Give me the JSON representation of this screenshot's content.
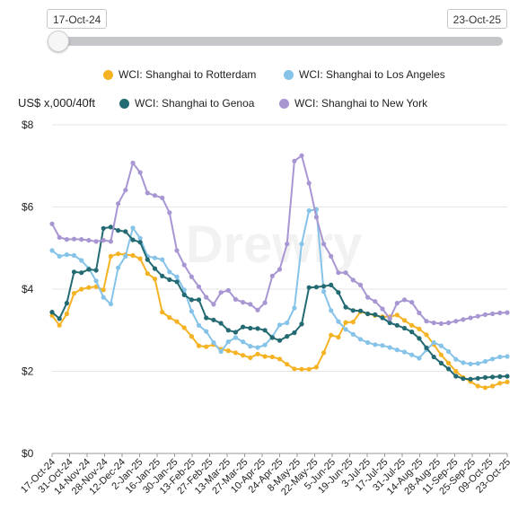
{
  "range": {
    "start_label": "17-Oct-24",
    "end_label": "23-Oct-25",
    "slider_position": 0
  },
  "unit_label": "US$ x,000/40ft",
  "watermark": "Drewry",
  "colors": {
    "rotterdam": "#f5b324",
    "los_angeles": "#86c3e8",
    "genoa": "#236a72",
    "new_york": "#a896d3",
    "grid": "#e6e6e6",
    "axis": "#9a9a9a"
  },
  "legend": [
    {
      "label": "WCI: Shanghai to Rotterdam",
      "color": "#f5b324"
    },
    {
      "label": "WCI: Shanghai to Los Angeles",
      "color": "#86c3e8"
    },
    {
      "label": "WCI: Shanghai to Genoa",
      "color": "#236a72"
    },
    {
      "label": "WCI: Shanghai to New York",
      "color": "#a896d3"
    }
  ],
  "chart_data": {
    "type": "line",
    "ylabel": "US$ x,000/40ft",
    "ylim": [
      0,
      8
    ],
    "yticks": [
      "$0",
      "$2",
      "$4",
      "$6",
      "$8"
    ],
    "ytick_values": [
      0,
      2,
      4,
      6,
      8
    ],
    "grid": true,
    "legend_position": "top",
    "x_tick_labels": [
      "17-Oct-24",
      "31-Oct-24",
      "14-Nov-24",
      "28-Nov-24",
      "12-Dec-24",
      "2-Jan-25",
      "16-Jan-25",
      "30-Jan-25",
      "13-Feb-25",
      "27-Feb-25",
      "13-Mar-25",
      "27-Mar-25",
      "10-Apr-25",
      "24-Apr-25",
      "8-May-25",
      "22-May-25",
      "5-Jun-25",
      "19-Jun-25",
      "3-Jul-25",
      "17-Jul-25",
      "31-Jul-25",
      "14-Aug-25",
      "28-Aug-25",
      "11-Sep-25",
      "25-Sep-25",
      "09-Oct-25",
      "23-Oct-25"
    ],
    "series": [
      {
        "name": "WCI: Shanghai to Rotterdam",
        "color": "#f5b324",
        "values": [
          3.36,
          3.12,
          3.4,
          3.9,
          4.0,
          4.04,
          4.06,
          3.98,
          4.8,
          4.86,
          4.84,
          4.82,
          4.74,
          4.38,
          4.25,
          3.44,
          3.31,
          3.21,
          3.06,
          2.85,
          2.62,
          2.6,
          2.65,
          2.54,
          2.5,
          2.45,
          2.39,
          2.33,
          2.42,
          2.36,
          2.35,
          2.3,
          2.17,
          2.06,
          2.05,
          2.05,
          2.1,
          2.45,
          2.88,
          2.83,
          3.19,
          3.2,
          3.45,
          3.4,
          3.36,
          3.33,
          3.33,
          3.37,
          3.24,
          3.12,
          3.03,
          2.89,
          2.65,
          2.4,
          2.2,
          2.0,
          1.85,
          1.75,
          1.64,
          1.6,
          1.64,
          1.71,
          1.74
        ]
      },
      {
        "name": "WCI: Shanghai to Los Angeles",
        "color": "#86c3e8",
        "values": [
          4.94,
          4.8,
          4.84,
          4.82,
          4.7,
          4.5,
          4.2,
          3.8,
          3.64,
          4.52,
          4.8,
          5.49,
          5.24,
          4.8,
          4.76,
          4.72,
          4.42,
          4.3,
          3.98,
          3.46,
          3.12,
          2.97,
          2.7,
          2.48,
          2.72,
          2.82,
          2.72,
          2.61,
          2.58,
          2.64,
          2.84,
          3.13,
          3.18,
          3.54,
          5.1,
          5.91,
          5.94,
          3.94,
          3.48,
          3.21,
          3.02,
          2.9,
          2.78,
          2.7,
          2.65,
          2.63,
          2.58,
          2.52,
          2.47,
          2.4,
          2.32,
          2.52,
          2.7,
          2.62,
          2.48,
          2.29,
          2.21,
          2.18,
          2.19,
          2.24,
          2.3,
          2.35,
          2.36
        ]
      },
      {
        "name": "WCI: Shanghai to Genoa",
        "color": "#236a72",
        "values": [
          3.44,
          3.28,
          3.66,
          4.42,
          4.4,
          4.48,
          4.46,
          5.48,
          5.51,
          5.43,
          5.4,
          5.2,
          5.14,
          4.72,
          4.5,
          4.32,
          4.23,
          4.18,
          3.86,
          3.74,
          3.74,
          3.3,
          3.25,
          3.17,
          3.0,
          2.95,
          3.08,
          3.05,
          3.04,
          3.0,
          2.82,
          2.75,
          2.85,
          2.94,
          3.15,
          4.04,
          4.05,
          4.07,
          4.1,
          3.92,
          3.56,
          3.48,
          3.47,
          3.4,
          3.38,
          3.3,
          3.18,
          3.12,
          3.05,
          2.96,
          2.8,
          2.57,
          2.35,
          2.2,
          2.06,
          1.88,
          1.82,
          1.81,
          1.83,
          1.85,
          1.86,
          1.87,
          1.88
        ]
      },
      {
        "name": "WCI: Shanghai to New York",
        "color": "#a896d3",
        "values": [
          5.59,
          5.26,
          5.21,
          5.22,
          5.21,
          5.19,
          5.16,
          5.19,
          5.16,
          6.08,
          6.41,
          7.07,
          6.84,
          6.34,
          6.28,
          6.22,
          5.86,
          4.94,
          4.59,
          4.3,
          4.06,
          3.8,
          3.63,
          3.92,
          3.97,
          3.75,
          3.68,
          3.63,
          3.49,
          3.67,
          4.32,
          4.48,
          5.1,
          7.12,
          7.25,
          6.58,
          5.75,
          5.1,
          4.8,
          4.4,
          4.4,
          4.22,
          4.1,
          3.8,
          3.7,
          3.52,
          3.28,
          3.66,
          3.74,
          3.68,
          3.42,
          3.22,
          3.18,
          3.16,
          3.18,
          3.22,
          3.26,
          3.3,
          3.34,
          3.38,
          3.4,
          3.42,
          3.43
        ]
      }
    ]
  }
}
